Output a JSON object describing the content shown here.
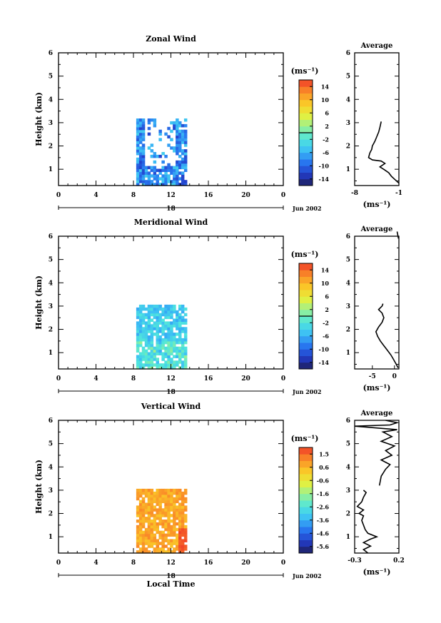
{
  "chart_data": [
    {
      "type": "heatmap",
      "title": "Zonal Wind",
      "ylabel": "Height (km)",
      "xlabel": "",
      "x_ticks": [
        "0",
        "4",
        "8",
        "12",
        "16",
        "20",
        "0"
      ],
      "y_ticks": [
        "1",
        "2",
        "3",
        "4",
        "5",
        "6"
      ],
      "date_day": "18",
      "date_label": "Jun 2002",
      "colorbar": {
        "unit": "(ms⁻¹)",
        "ticks": [
          "14",
          "10",
          "6",
          "2",
          "-2",
          "-6",
          "-10",
          "-14"
        ],
        "range": [
          -16,
          16
        ]
      },
      "avg_profile": {
        "title": "Average",
        "xlabel": "(ms⁻¹)",
        "x_ticks": [
          "-8",
          "-1"
        ],
        "xlim": [
          -8,
          -1
        ],
        "y_ticks": [
          "1",
          "2",
          "3",
          "4",
          "5",
          "6"
        ],
        "points": [
          [
            -1.0,
            0.4
          ],
          [
            -1.6,
            0.55
          ],
          [
            -2.2,
            0.7
          ],
          [
            -2.6,
            0.85
          ],
          [
            -3.4,
            1.0
          ],
          [
            -4.0,
            1.1
          ],
          [
            -3.2,
            1.25
          ],
          [
            -3.8,
            1.35
          ],
          [
            -5.2,
            1.4
          ],
          [
            -5.8,
            1.5
          ],
          [
            -5.6,
            1.7
          ],
          [
            -5.3,
            1.85
          ],
          [
            -5.2,
            2.0
          ],
          [
            -4.8,
            2.2
          ],
          [
            -4.5,
            2.4
          ],
          [
            -4.2,
            2.6
          ],
          [
            -4.0,
            2.8
          ],
          [
            -3.8,
            3.05
          ]
        ]
      },
      "field": {
        "x_range": [
          8.3,
          13.5
        ],
        "y_range": [
          0.3,
          3.1
        ],
        "base": -8,
        "min": -16,
        "max": 8
      }
    },
    {
      "type": "heatmap",
      "title": "Meridional Wind",
      "ylabel": "Height (km)",
      "xlabel": "",
      "x_ticks": [
        "0",
        "4",
        "8",
        "12",
        "16",
        "20",
        "0"
      ],
      "y_ticks": [
        "1",
        "2",
        "3",
        "4",
        "5",
        "6"
      ],
      "date_day": "18",
      "date_label": "Jun 2002",
      "colorbar": {
        "unit": "(ms⁻¹)",
        "ticks": [
          "14",
          "10",
          "6",
          "2",
          "-2",
          "-6",
          "-10",
          "-14"
        ],
        "range": [
          -16,
          16
        ]
      },
      "avg_profile": {
        "title": "Average",
        "xlabel": "(ms⁻¹)",
        "x_ticks": [
          "-5",
          "0"
        ],
        "xlim": [
          -9,
          1
        ],
        "y_ticks": [
          "1",
          "2",
          "3",
          "4",
          "5",
          "6"
        ],
        "points": [
          [
            0.8,
            0.35
          ],
          [
            0.4,
            0.5
          ],
          [
            -0.2,
            0.7
          ],
          [
            -0.8,
            0.9
          ],
          [
            -1.6,
            1.1
          ],
          [
            -2.4,
            1.3
          ],
          [
            -3.2,
            1.5
          ],
          [
            -3.8,
            1.7
          ],
          [
            -4.2,
            1.9
          ],
          [
            -3.6,
            2.1
          ],
          [
            -2.8,
            2.3
          ],
          [
            -2.4,
            2.5
          ],
          [
            -2.8,
            2.7
          ],
          [
            -3.6,
            2.85
          ],
          [
            -2.8,
            3.0
          ],
          [
            -2.6,
            3.1
          ]
        ],
        "extra_points": [
          [
            0.6,
            6.2
          ],
          [
            0.9,
            5.9
          ]
        ]
      },
      "field": {
        "x_range": [
          8.3,
          13.5
        ],
        "y_range": [
          0.3,
          3.0
        ],
        "base": -4,
        "min": -10,
        "max": 4
      }
    },
    {
      "type": "heatmap",
      "title": "Vertical Wind",
      "ylabel": "Height (km)",
      "xlabel": "Local Time",
      "x_ticks": [
        "0",
        "4",
        "8",
        "12",
        "16",
        "20",
        "0"
      ],
      "y_ticks": [
        "1",
        "2",
        "3",
        "4",
        "5",
        "6"
      ],
      "date_day": "18",
      "date_label": "Jun 2002",
      "colorbar": {
        "unit": "(ms⁻¹)",
        "ticks": [
          "1.5",
          "0.6",
          "-0.6",
          "-1.6",
          "-2.6",
          "-3.6",
          "-4.6",
          "-5.6"
        ],
        "range": [
          -6.1,
          2.0
        ]
      },
      "avg_profile": {
        "title": "Average",
        "xlabel": "(ms⁻¹)",
        "x_ticks": [
          "-0.3",
          "0.2"
        ],
        "xlim": [
          -0.3,
          0.2
        ],
        "y_ticks": [
          "1",
          "2",
          "3",
          "4",
          "5",
          "6"
        ],
        "points": [
          [
            -0.15,
            0.3
          ],
          [
            -0.2,
            0.45
          ],
          [
            -0.12,
            0.6
          ],
          [
            -0.2,
            0.75
          ],
          [
            -0.12,
            0.9
          ],
          [
            -0.05,
            1.0
          ],
          [
            -0.15,
            1.15
          ],
          [
            -0.18,
            1.3
          ],
          [
            -0.2,
            1.5
          ],
          [
            -0.22,
            1.7
          ],
          [
            -0.2,
            1.9
          ],
          [
            -0.25,
            2.0
          ],
          [
            -0.2,
            2.15
          ],
          [
            -0.27,
            2.3
          ],
          [
            -0.22,
            2.5
          ],
          [
            -0.2,
            2.7
          ],
          [
            -0.17,
            2.9
          ],
          [
            -0.2,
            3.0
          ]
        ],
        "extra_points": [
          [
            -0.02,
            3.2
          ],
          [
            0.0,
            3.6
          ],
          [
            0.05,
            3.9
          ],
          [
            0.1,
            4.1
          ],
          [
            0.0,
            4.3
          ],
          [
            0.12,
            4.5
          ],
          [
            0.05,
            4.7
          ],
          [
            0.15,
            4.9
          ],
          [
            0.0,
            5.1
          ],
          [
            0.12,
            5.3
          ],
          [
            0.02,
            5.5
          ],
          [
            0.18,
            5.6
          ],
          [
            -0.3,
            5.75
          ],
          [
            0.1,
            5.8
          ],
          [
            0.18,
            5.9
          ],
          [
            0.05,
            6.0
          ]
        ]
      },
      "field": {
        "x_range": [
          8.3,
          13.5
        ],
        "y_range": [
          0.3,
          3.0
        ],
        "base": 0.7,
        "min": -0.6,
        "max": 2.0
      }
    }
  ]
}
